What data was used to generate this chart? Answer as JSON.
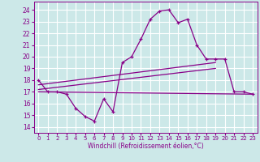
{
  "xlabel": "Windchill (Refroidissement éolien,°C)",
  "background_color": "#cce8e8",
  "grid_color": "#ffffff",
  "line_color": "#880088",
  "xlim": [
    -0.5,
    23.5
  ],
  "ylim": [
    13.5,
    24.7
  ],
  "yticks": [
    14,
    15,
    16,
    17,
    18,
    19,
    20,
    21,
    22,
    23,
    24
  ],
  "xticks": [
    0,
    1,
    2,
    3,
    4,
    5,
    6,
    7,
    8,
    9,
    10,
    11,
    12,
    13,
    14,
    15,
    16,
    17,
    18,
    19,
    20,
    21,
    22,
    23
  ],
  "main_x": [
    0,
    1,
    2,
    3,
    4,
    5,
    6,
    7,
    8,
    9,
    10,
    11,
    12,
    13,
    14,
    15,
    16,
    17,
    18,
    19,
    20,
    21,
    22,
    23
  ],
  "main_y": [
    18.0,
    17.0,
    17.0,
    16.8,
    15.6,
    14.9,
    14.5,
    16.4,
    15.3,
    19.5,
    20.0,
    21.5,
    23.2,
    23.9,
    24.0,
    22.9,
    23.2,
    21.0,
    19.8,
    19.8,
    19.8,
    17.0,
    17.0,
    16.8
  ],
  "line2_x": [
    0,
    23
  ],
  "line2_y": [
    17.0,
    16.8
  ],
  "line3_x": [
    0,
    19
  ],
  "line3_y": [
    17.2,
    19.0
  ],
  "line4_x": [
    0,
    19
  ],
  "line4_y": [
    17.6,
    19.5
  ]
}
